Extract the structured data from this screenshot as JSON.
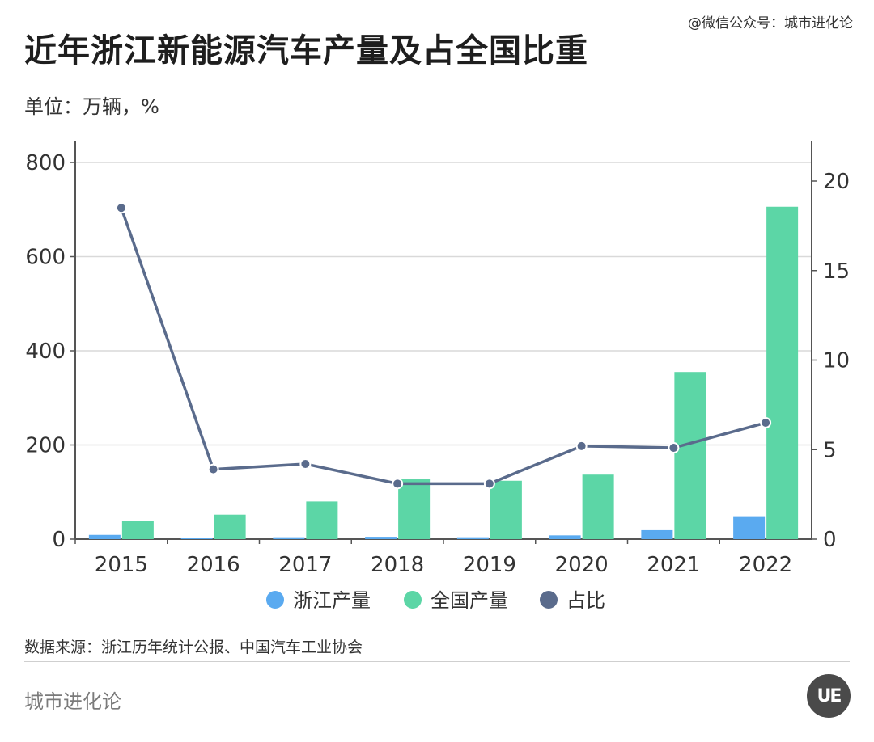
{
  "header": {
    "title": "近年浙江新能源汽车产量及占全国比重",
    "unit": "单位：万辆，%",
    "credit": "@微信公众号：城市进化论"
  },
  "footer": {
    "source": "数据来源：浙江历年统计公报、中国汽车工业协会",
    "brand": "城市进化论",
    "logo_text": "UE"
  },
  "colors": {
    "zhejiang": "#5aaaf0",
    "national": "#5cd6a6",
    "share": "#5a6b8c",
    "grid": "#d9d9d9",
    "axis": "#555555"
  },
  "chart_data": {
    "type": "bar",
    "categories": [
      "2015",
      "2016",
      "2017",
      "2018",
      "2019",
      "2020",
      "2021",
      "2022"
    ],
    "series": [
      {
        "name": "浙江产量",
        "axis": "left",
        "type": "bar",
        "values": [
          9,
          3,
          4,
          5,
          4,
          8,
          19,
          47
        ]
      },
      {
        "name": "全国产量",
        "axis": "left",
        "type": "bar",
        "values": [
          38,
          52,
          80,
          127,
          124,
          137,
          355,
          706
        ]
      },
      {
        "name": "占比",
        "axis": "right",
        "type": "line",
        "values": [
          18.5,
          3.9,
          4.2,
          3.1,
          3.1,
          5.2,
          5.1,
          6.5
        ]
      }
    ],
    "y_left": {
      "ticks": [
        0,
        200,
        400,
        600,
        800
      ],
      "ylim": [
        0,
        800
      ]
    },
    "y_right": {
      "ticks": [
        0,
        5,
        10,
        15,
        20
      ],
      "ylim": [
        0,
        20
      ]
    },
    "grid": true,
    "legend": {
      "position": "bottom",
      "items": [
        "浙江产量",
        "全国产量",
        "占比"
      ]
    }
  }
}
